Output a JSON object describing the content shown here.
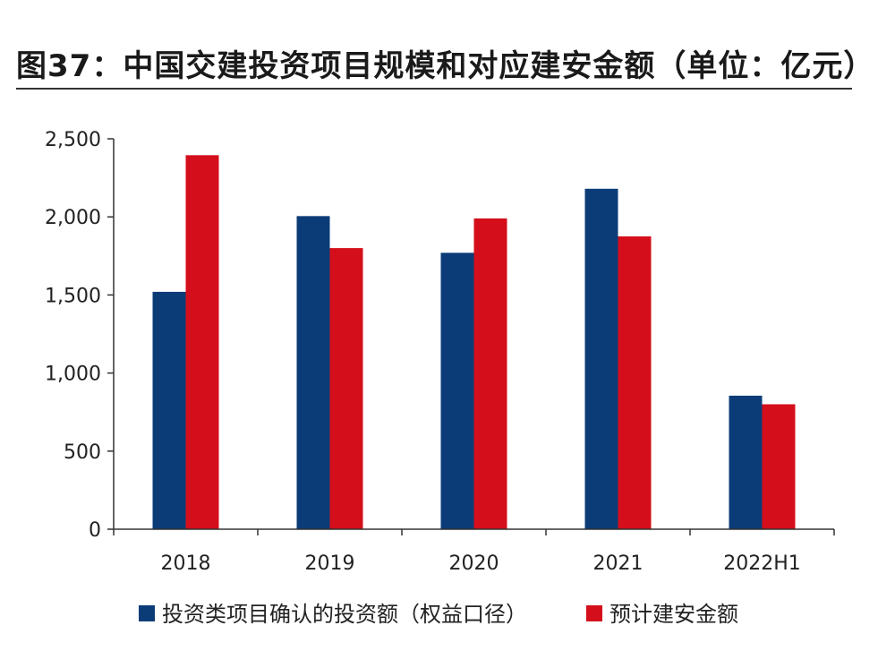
{
  "title": "图37：中国交建投资项目规模和对应建安金额（单位：亿元）",
  "colors": {
    "series1": "#0b3c78",
    "series2": "#d40f1b",
    "axis": "#333333"
  },
  "chart_data": {
    "type": "bar",
    "categories": [
      "2018",
      "2019",
      "2020",
      "2021",
      "2022H1"
    ],
    "series": [
      {
        "name": "投资类项目确认的投资额（权益口径）",
        "values": [
          1520,
          2005,
          1770,
          2180,
          855
        ]
      },
      {
        "name": "预计建安金额",
        "values": [
          2395,
          1800,
          1990,
          1875,
          800
        ]
      }
    ],
    "yticks": [
      "0",
      "500",
      "1,000",
      "1,500",
      "2,000",
      "2,500"
    ],
    "ylim": [
      0,
      2500
    ],
    "legend_position": "bottom",
    "grid": false
  }
}
